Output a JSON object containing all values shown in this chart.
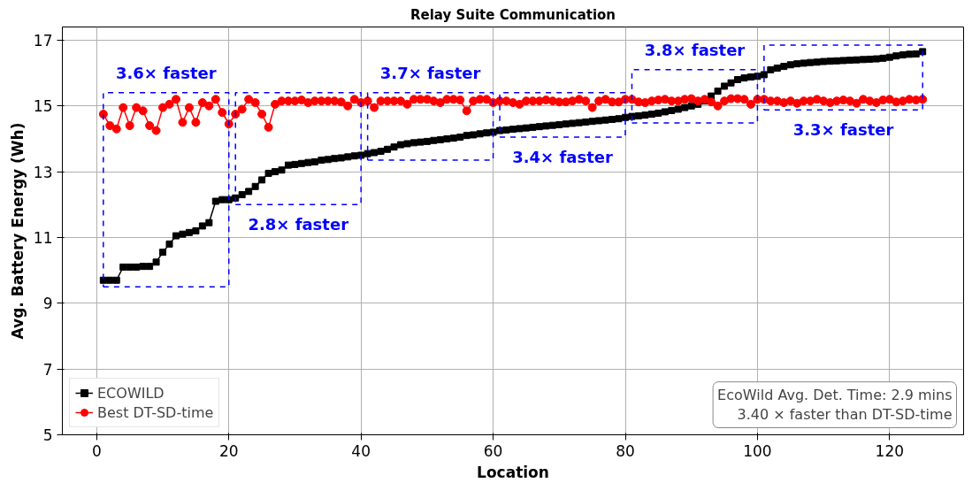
{
  "chart_data": {
    "type": "line",
    "title": "Relay Suite Communication",
    "xlabel": "Location",
    "ylabel": "Avg. Battery Energy (Wh)",
    "x": [
      1,
      2,
      3,
      4,
      5,
      6,
      7,
      8,
      9,
      10,
      11,
      12,
      13,
      14,
      15,
      16,
      17,
      18,
      19,
      20,
      21,
      22,
      23,
      24,
      25,
      26,
      27,
      28,
      29,
      30,
      31,
      32,
      33,
      34,
      35,
      36,
      37,
      38,
      39,
      40,
      41,
      42,
      43,
      44,
      45,
      46,
      47,
      48,
      49,
      50,
      51,
      52,
      53,
      54,
      55,
      56,
      57,
      58,
      59,
      60,
      61,
      62,
      63,
      64,
      65,
      66,
      67,
      68,
      69,
      70,
      71,
      72,
      73,
      74,
      75,
      76,
      77,
      78,
      79,
      80,
      81,
      82,
      83,
      84,
      85,
      86,
      87,
      88,
      89,
      90,
      91,
      92,
      93,
      94,
      95,
      96,
      97,
      98,
      99,
      100,
      101,
      102,
      103,
      104,
      105,
      106,
      107,
      108,
      109,
      110,
      111,
      112,
      113,
      114,
      115,
      116,
      117,
      118,
      119,
      120,
      121,
      122,
      123,
      124,
      125
    ],
    "series": [
      {
        "name": "ECOWILD",
        "color": "#000000",
        "marker": "square",
        "values": [
          9.7,
          9.7,
          9.7,
          10.1,
          10.1,
          10.1,
          10.12,
          10.12,
          10.25,
          10.55,
          10.8,
          11.05,
          11.1,
          11.15,
          11.2,
          11.35,
          11.45,
          12.1,
          12.15,
          12.15,
          12.2,
          12.3,
          12.4,
          12.55,
          12.75,
          12.95,
          13.0,
          13.05,
          13.2,
          13.22,
          13.25,
          13.28,
          13.3,
          13.35,
          13.37,
          13.4,
          13.42,
          13.45,
          13.48,
          13.5,
          13.55,
          13.58,
          13.62,
          13.68,
          13.75,
          13.82,
          13.85,
          13.88,
          13.9,
          13.92,
          13.95,
          13.97,
          14.0,
          14.02,
          14.05,
          14.1,
          14.12,
          14.15,
          14.18,
          14.2,
          14.25,
          14.27,
          14.29,
          14.31,
          14.33,
          14.35,
          14.37,
          14.39,
          14.41,
          14.43,
          14.45,
          14.47,
          14.49,
          14.51,
          14.53,
          14.55,
          14.57,
          14.59,
          14.61,
          14.65,
          14.68,
          14.7,
          14.72,
          14.75,
          14.78,
          14.82,
          14.86,
          14.9,
          14.95,
          15.0,
          15.05,
          15.15,
          15.3,
          15.45,
          15.6,
          15.7,
          15.8,
          15.85,
          15.88,
          15.9,
          15.95,
          16.1,
          16.15,
          16.2,
          16.25,
          16.28,
          16.3,
          16.32,
          16.33,
          16.35,
          16.36,
          16.37,
          16.38,
          16.39,
          16.4,
          16.41,
          16.42,
          16.43,
          16.45,
          16.48,
          16.52,
          16.55,
          16.57,
          16.58,
          16.65
        ]
      },
      {
        "name": "Best DT-SD-time",
        "color": "#ff0000",
        "marker": "circle",
        "values": [
          14.75,
          14.4,
          14.3,
          14.95,
          14.4,
          14.95,
          14.85,
          14.4,
          14.25,
          14.95,
          15.05,
          15.2,
          14.5,
          14.95,
          14.5,
          15.1,
          15.0,
          15.2,
          14.8,
          14.45,
          14.75,
          14.9,
          15.2,
          15.1,
          14.75,
          14.35,
          15.05,
          15.15,
          15.15,
          15.15,
          15.18,
          15.1,
          15.15,
          15.15,
          15.15,
          15.15,
          15.12,
          15.0,
          15.2,
          15.1,
          15.15,
          14.95,
          15.15,
          15.15,
          15.15,
          15.15,
          15.05,
          15.2,
          15.2,
          15.2,
          15.15,
          15.1,
          15.2,
          15.2,
          15.18,
          14.85,
          15.15,
          15.2,
          15.2,
          15.1,
          15.15,
          15.15,
          15.1,
          15.05,
          15.15,
          15.15,
          15.15,
          15.18,
          15.15,
          15.12,
          15.12,
          15.15,
          15.2,
          15.15,
          14.95,
          15.15,
          15.2,
          15.12,
          15.12,
          15.2,
          15.2,
          15.12,
          15.1,
          15.15,
          15.18,
          15.2,
          15.15,
          15.15,
          15.2,
          15.22,
          15.15,
          15.2,
          15.12,
          15.0,
          15.15,
          15.22,
          15.22,
          15.2,
          15.05,
          15.2,
          15.2,
          15.15,
          15.15,
          15.1,
          15.15,
          15.08,
          15.15,
          15.15,
          15.2,
          15.15,
          15.1,
          15.15,
          15.18,
          15.15,
          15.08,
          15.2,
          15.15,
          15.1,
          15.18,
          15.2,
          15.12,
          15.15,
          15.2,
          15.18,
          15.2
        ]
      }
    ],
    "annotations": [
      "3.6× faster",
      "2.8× faster",
      "3.7× faster",
      "3.4× faster",
      "3.8× faster",
      "3.3× faster",
      "EcoWild Avg. Det. Time: 2.9 mins",
      "3.40 × faster than DT-SD-time"
    ],
    "xlim": [
      -5.2,
      131.2
    ],
    "ylim": [
      5,
      17.4
    ],
    "xticks": [
      0,
      20,
      40,
      60,
      80,
      100,
      120
    ],
    "yticks": [
      5,
      7,
      9,
      11,
      13,
      15,
      17
    ],
    "grid": true,
    "legend": "bottom left",
    "line_style": "solid"
  }
}
